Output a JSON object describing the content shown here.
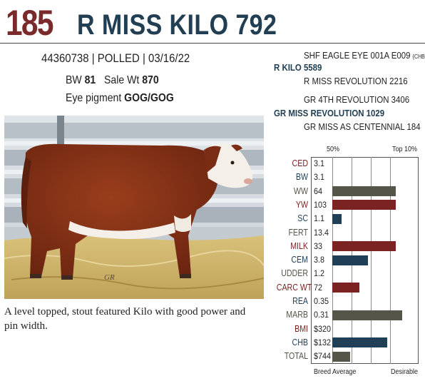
{
  "header": {
    "lot_number": "185",
    "name": "R MISS KILO 792"
  },
  "animal": {
    "registration_line": "44360738 | POLLED | 03/16/22",
    "bw_label": "BW",
    "bw_value": "81",
    "sale_wt_label": "Sale Wt",
    "sale_wt_value": "870",
    "eye_label": "Eye pigment",
    "eye_value": "GOG/GOG"
  },
  "pedigree": {
    "sire_sire": "SHF EAGLE EYE 001A E009",
    "sire_sire_tag": "{CHB}",
    "sire": "R KILO 5589",
    "sire_dam": "R MISS REVOLUTION 2216",
    "dam_sire": "GR 4TH REVOLUTION 3406",
    "dam": "GR MISS REVOLUTION 1029",
    "dam_dam": "GR MISS AS CENTENNIAL 184"
  },
  "photo": {
    "watermark": "GR"
  },
  "description": "A level topped, stout featured Kilo with good power and pin width.",
  "epd": {
    "header_50": "50%",
    "header_top": "Top 10%",
    "footer_left": "Breed Average",
    "footer_right": "Desirable",
    "colors": {
      "maroon": "#7b2222",
      "navy": "#1f3f57",
      "olive": "#56554a"
    },
    "rows": [
      {
        "label": "CED",
        "value": "3.1",
        "label_color": "maroon",
        "bar": 0,
        "bar_color": ""
      },
      {
        "label": "BW",
        "value": "3.1",
        "label_color": "navy",
        "bar": 0,
        "bar_color": ""
      },
      {
        "label": "WW",
        "value": "64",
        "label_color": "olive",
        "bar": 0.74,
        "bar_color": "olive"
      },
      {
        "label": "YW",
        "value": "103",
        "label_color": "maroon",
        "bar": 0.74,
        "bar_color": "maroon"
      },
      {
        "label": "SC",
        "value": "1.1",
        "label_color": "navy",
        "bar": 0.11,
        "bar_color": "navy"
      },
      {
        "label": "FERT",
        "value": "13.4",
        "label_color": "olive",
        "bar": 0,
        "bar_color": ""
      },
      {
        "label": "MILK",
        "value": "33",
        "label_color": "maroon",
        "bar": 0.74,
        "bar_color": "maroon"
      },
      {
        "label": "CEM",
        "value": "3.8",
        "label_color": "navy",
        "bar": 0.42,
        "bar_color": "navy"
      },
      {
        "label": "UDDER",
        "value": "1.2",
        "label_color": "olive",
        "bar": 0,
        "bar_color": ""
      },
      {
        "label": "CARC WT",
        "value": "72",
        "label_color": "maroon",
        "bar": 0.32,
        "bar_color": "maroon"
      },
      {
        "label": "REA",
        "value": "0.35",
        "label_color": "navy",
        "bar": 0,
        "bar_color": ""
      },
      {
        "label": "MARB",
        "value": "0.31",
        "label_color": "olive",
        "bar": 0.82,
        "bar_color": "olive"
      },
      {
        "label": "BMI",
        "value": "$320",
        "label_color": "maroon",
        "bar": 0,
        "bar_color": ""
      },
      {
        "label": "CHB",
        "value": "$132",
        "label_color": "navy",
        "bar": 0.64,
        "bar_color": "navy"
      },
      {
        "label": "TOTAL",
        "value": "$744",
        "label_color": "olive",
        "bar": 0.21,
        "bar_color": "olive"
      }
    ]
  }
}
